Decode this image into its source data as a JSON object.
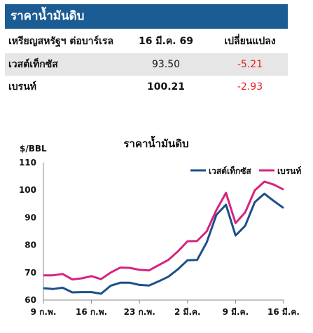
{
  "table": {
    "title": "ราคาน้ำมันดิบ",
    "header": {
      "col1": "เหรียญสหรัฐฯ ต่อบาร์เรล",
      "col2": "16 มี.ค. 69",
      "col3": "เปลี่ยนแปลง"
    },
    "rows": [
      {
        "name": "เวสต์เท็กซัส",
        "price": "93.50",
        "change": "-5.21"
      },
      {
        "name": "เบรนท์",
        "price": "100.21",
        "change": "-2.93"
      }
    ],
    "change_color": "#e02020"
  },
  "chart_data": {
    "type": "line",
    "title": "ราคาน้ำมันดิบ",
    "ylabel": "$/BBL",
    "ylim": [
      60,
      110
    ],
    "yticks": [
      60,
      70,
      80,
      90,
      100,
      110
    ],
    "xticks": [
      "9 ก.พ.",
      "16 ก.พ.",
      "23 ก.พ.",
      "2 มี.ค.",
      "9 มี.ค.",
      "16 มี.ค."
    ],
    "x": [
      "2026-02-09",
      "2026-02-10",
      "2026-02-11",
      "2026-02-12",
      "2026-02-13",
      "2026-02-16",
      "2026-02-17",
      "2026-02-18",
      "2026-02-19",
      "2026-02-20",
      "2026-02-23",
      "2026-02-24",
      "2026-02-25",
      "2026-02-26",
      "2026-02-27",
      "2026-03-02",
      "2026-03-03",
      "2026-03-04",
      "2026-03-05",
      "2026-03-06",
      "2026-03-09",
      "2026-03-10",
      "2026-03-11",
      "2026-03-12",
      "2026-03-13",
      "2026-03-16"
    ],
    "grid": false,
    "legend": "top-right",
    "series": [
      {
        "name": "เวสต์เท็กซัส",
        "color": "#1b4f8a",
        "values": [
          64.3,
          64.0,
          64.5,
          62.8,
          62.9,
          62.9,
          62.3,
          65.2,
          66.3,
          66.3,
          65.5,
          65.3,
          66.8,
          68.5,
          71.2,
          74.5,
          74.6,
          81.0,
          91.0,
          94.7,
          83.5,
          87.0,
          95.6,
          98.7,
          96.0,
          93.5
        ]
      },
      {
        "name": "เบรนท์",
        "color": "#d6247e",
        "values": [
          69.0,
          69.0,
          69.5,
          67.5,
          67.9,
          68.7,
          67.6,
          70.0,
          71.8,
          71.7,
          71.0,
          70.8,
          72.7,
          74.6,
          77.7,
          81.4,
          81.5,
          85.0,
          92.7,
          99.0,
          88.0,
          91.9,
          99.9,
          103.1,
          102.0,
          100.2
        ]
      }
    ]
  }
}
